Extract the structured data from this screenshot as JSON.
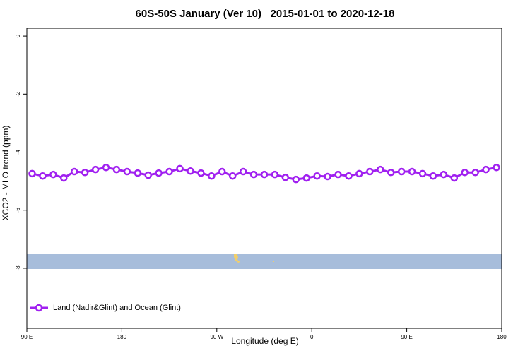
{
  "chart_data": {
    "type": "line",
    "title": "60S-50S January (Ver 10)   2015-01-01 to 2020-12-18",
    "x_label": "Longitude (deg E)",
    "y_label": "XCO2 - MLO trend (ppm)",
    "legend_position": "bottom-left",
    "x": [
      95,
      105,
      115,
      125,
      135,
      145,
      155,
      165,
      175,
      185,
      195,
      205,
      215,
      225,
      235,
      245,
      255,
      265,
      275,
      285,
      295,
      305,
      315,
      325,
      335,
      345,
      355,
      365,
      375,
      385,
      395,
      405,
      415,
      425,
      435,
      445,
      455,
      465,
      475,
      485,
      495,
      505,
      515,
      525,
      535
    ],
    "series": [
      {
        "name": "Land (Nadir&Glint) and Ocean (Glint)",
        "color": "#a020f0",
        "values": [
          -4.74,
          -4.82,
          -4.77,
          -4.89,
          -4.67,
          -4.7,
          -4.6,
          -4.53,
          -4.6,
          -4.67,
          -4.72,
          -4.79,
          -4.72,
          -4.67,
          -4.57,
          -4.65,
          -4.72,
          -4.82,
          -4.67,
          -4.82,
          -4.67,
          -4.77,
          -4.77,
          -4.77,
          -4.87,
          -4.94,
          -4.89,
          -4.82,
          -4.84,
          -4.77,
          -4.82,
          -4.74,
          -4.67,
          -4.6,
          -4.7,
          -4.67,
          -4.67,
          -4.74,
          -4.82,
          -4.77,
          -4.89,
          -4.7,
          -4.7,
          -4.6,
          -4.53
        ]
      }
    ],
    "xlim": [
      90,
      540
    ],
    "xticks": [
      {
        "value": 90,
        "label": "90 E"
      },
      {
        "value": 180,
        "label": "180"
      },
      {
        "value": 270,
        "label": "90 W"
      },
      {
        "value": 360,
        "label": "0"
      },
      {
        "value": 450,
        "label": "90 E"
      },
      {
        "value": 540,
        "label": "180"
      }
    ],
    "ylim": [
      -10.07,
      0.27
    ],
    "yticks": [
      0,
      -2,
      -4,
      -6,
      -8
    ]
  }
}
